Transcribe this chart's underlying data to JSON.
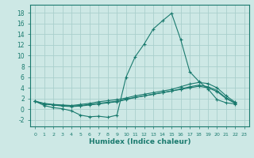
{
  "xlabel": "Humidex (Indice chaleur)",
  "bg_color": "#cde8e5",
  "grid_color": "#aacfcc",
  "line_color": "#1a7a6e",
  "xlim": [
    -0.5,
    23.5
  ],
  "ylim": [
    -3.2,
    19.5
  ],
  "xticks": [
    0,
    1,
    2,
    3,
    4,
    5,
    6,
    7,
    8,
    9,
    10,
    11,
    12,
    13,
    14,
    15,
    16,
    17,
    18,
    19,
    20,
    21,
    22,
    23
  ],
  "yticks": [
    -2,
    0,
    2,
    4,
    6,
    8,
    10,
    12,
    14,
    16,
    18
  ],
  "series": [
    {
      "x": [
        0,
        1,
        2,
        3,
        4,
        5,
        6,
        7,
        8,
        9,
        10,
        11,
        12,
        13,
        14,
        15,
        16,
        17,
        18,
        19,
        20,
        21,
        22
      ],
      "y": [
        1.5,
        0.7,
        0.3,
        0.1,
        -0.3,
        -1.1,
        -1.4,
        -1.3,
        -1.5,
        -1.1,
        6.0,
        9.8,
        12.2,
        15.0,
        16.5,
        17.9,
        13.0,
        7.0,
        5.2,
        3.8,
        1.8,
        1.2,
        1.0
      ]
    },
    {
      "x": [
        0,
        1,
        2,
        3,
        4,
        5,
        6,
        7,
        8,
        9,
        10,
        11,
        12,
        13,
        14,
        15,
        16,
        17,
        18,
        19,
        20,
        21,
        22
      ],
      "y": [
        1.5,
        1.1,
        0.9,
        0.8,
        0.7,
        0.9,
        1.1,
        1.4,
        1.6,
        1.8,
        2.1,
        2.5,
        2.8,
        3.1,
        3.4,
        3.7,
        4.2,
        4.7,
        5.0,
        4.8,
        4.0,
        2.5,
        1.3
      ]
    },
    {
      "x": [
        0,
        1,
        2,
        3,
        4,
        5,
        6,
        7,
        8,
        9,
        10,
        11,
        12,
        13,
        14,
        15,
        16,
        17,
        18,
        19,
        20,
        21,
        22
      ],
      "y": [
        1.5,
        1.0,
        0.8,
        0.6,
        0.5,
        0.6,
        0.8,
        1.0,
        1.2,
        1.4,
        1.8,
        2.2,
        2.5,
        2.8,
        3.1,
        3.4,
        3.8,
        4.2,
        4.5,
        4.2,
        3.5,
        2.1,
        1.2
      ]
    },
    {
      "x": [
        0,
        1,
        2,
        3,
        4,
        5,
        6,
        7,
        8,
        9,
        10,
        11,
        12,
        13,
        14,
        15,
        16,
        17,
        18,
        19,
        20,
        21,
        22
      ],
      "y": [
        1.5,
        1.0,
        0.8,
        0.7,
        0.6,
        0.7,
        0.9,
        1.1,
        1.3,
        1.5,
        1.9,
        2.2,
        2.5,
        2.8,
        3.1,
        3.4,
        3.7,
        4.0,
        4.3,
        4.0,
        3.3,
        2.0,
        1.1
      ]
    }
  ]
}
